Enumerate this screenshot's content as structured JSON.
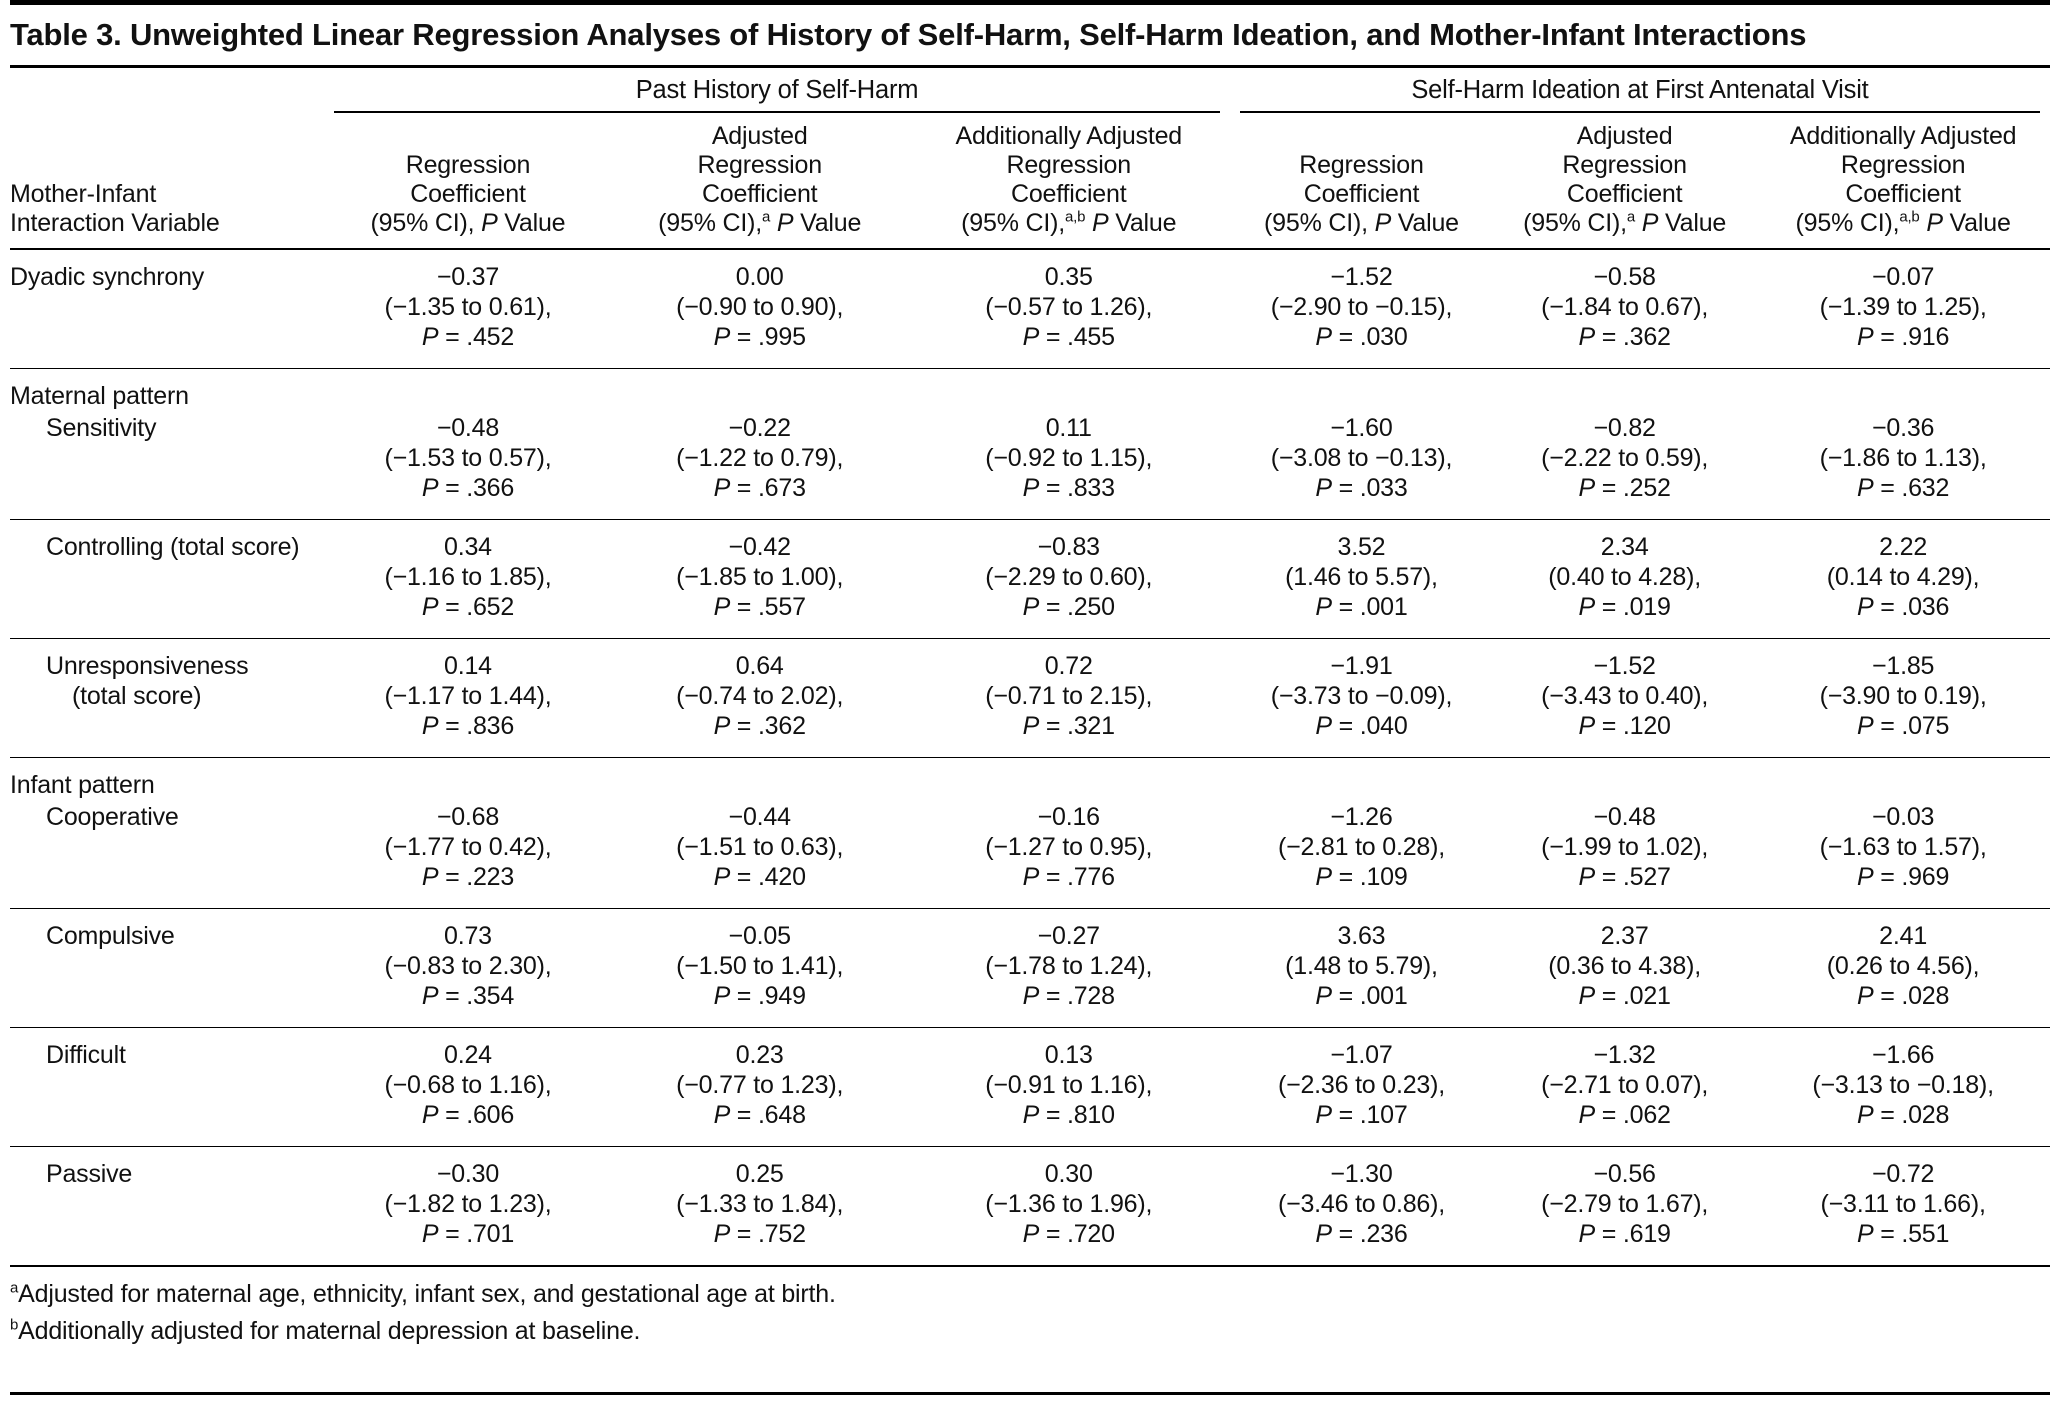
{
  "page": {
    "title": "Table 3. Unweighted Linear Regression Analyses of History of Self-Harm, Self-Harm Ideation, and Mother-Infant Interactions"
  },
  "table": {
    "stub_header_lines": [
      "Mother-Infant",
      "Interaction Variable"
    ],
    "col_groups": [
      {
        "label": "Past History of Self-Harm"
      },
      {
        "label": "Self-Harm Ideation at First Antenatal Visit"
      }
    ],
    "p_word": "P",
    "value_word": "Value",
    "p_eq": " = ",
    "col_headers": [
      {
        "lines": [
          "Regression",
          "Coefficient"
        ],
        "ci": "(95% CI),",
        "sup": ""
      },
      {
        "lines": [
          "Adjusted",
          "Regression",
          "Coefficient"
        ],
        "ci": "(95% CI),",
        "sup": "a"
      },
      {
        "lines": [
          "Additionally Adjusted",
          "Regression",
          "Coefficient"
        ],
        "ci": "(95% CI),",
        "sup": "a,b"
      },
      {
        "lines": [
          "Regression",
          "Coefficient"
        ],
        "ci": "(95% CI),",
        "sup": ""
      },
      {
        "lines": [
          "Adjusted",
          "Regression",
          "Coefficient"
        ],
        "ci": "(95% CI),",
        "sup": "a"
      },
      {
        "lines": [
          "Additionally Adjusted",
          "Regression",
          "Coefficient"
        ],
        "ci": "(95% CI),",
        "sup": "a,b"
      }
    ],
    "blocks": [
      {
        "section": null,
        "rows": [
          {
            "label_lines": [
              "Dyadic synchrony"
            ],
            "indent": 0,
            "cells": [
              {
                "coef": "−0.37",
                "ci": "(−1.35 to 0.61),",
                "p": ".452"
              },
              {
                "coef": "0.00",
                "ci": "(−0.90 to 0.90),",
                "p": ".995"
              },
              {
                "coef": "0.35",
                "ci": "(−0.57 to 1.26),",
                "p": ".455"
              },
              {
                "coef": "−1.52",
                "ci": "(−2.90 to −0.15),",
                "p": ".030"
              },
              {
                "coef": "−0.58",
                "ci": "(−1.84 to 0.67),",
                "p": ".362"
              },
              {
                "coef": "−0.07",
                "ci": "(−1.39 to 1.25),",
                "p": ".916"
              }
            ]
          }
        ]
      },
      {
        "section": "Maternal pattern",
        "rows": [
          {
            "label_lines": [
              "Sensitivity"
            ],
            "indent": 1,
            "cells": [
              {
                "coef": "−0.48",
                "ci": "(−1.53 to 0.57),",
                "p": ".366"
              },
              {
                "coef": "−0.22",
                "ci": "(−1.22 to 0.79),",
                "p": ".673"
              },
              {
                "coef": "0.11",
                "ci": "(−0.92 to 1.15),",
                "p": ".833"
              },
              {
                "coef": "−1.60",
                "ci": "(−3.08 to −0.13),",
                "p": ".033"
              },
              {
                "coef": "−0.82",
                "ci": "(−2.22 to 0.59),",
                "p": ".252"
              },
              {
                "coef": "−0.36",
                "ci": "(−1.86 to 1.13),",
                "p": ".632"
              }
            ]
          }
        ]
      },
      {
        "section": null,
        "rows": [
          {
            "label_lines": [
              "Controlling (total score)"
            ],
            "indent": 1,
            "cells": [
              {
                "coef": "0.34",
                "ci": "(−1.16 to 1.85),",
                "p": ".652"
              },
              {
                "coef": "−0.42",
                "ci": "(−1.85 to 1.00),",
                "p": ".557"
              },
              {
                "coef": "−0.83",
                "ci": "(−2.29 to 0.60),",
                "p": ".250"
              },
              {
                "coef": "3.52",
                "ci": "(1.46 to 5.57),",
                "p": ".001"
              },
              {
                "coef": "2.34",
                "ci": "(0.40 to 4.28),",
                "p": ".019"
              },
              {
                "coef": "2.22",
                "ci": "(0.14 to 4.29),",
                "p": ".036"
              }
            ]
          }
        ]
      },
      {
        "section": null,
        "rows": [
          {
            "label_lines": [
              "Unresponsiveness",
              "(total score)"
            ],
            "indent": 1,
            "cells": [
              {
                "coef": "0.14",
                "ci": "(−1.17 to 1.44),",
                "p": ".836"
              },
              {
                "coef": "0.64",
                "ci": "(−0.74 to 2.02),",
                "p": ".362"
              },
              {
                "coef": "0.72",
                "ci": "(−0.71 to 2.15),",
                "p": ".321"
              },
              {
                "coef": "−1.91",
                "ci": "(−3.73 to −0.09),",
                "p": ".040"
              },
              {
                "coef": "−1.52",
                "ci": "(−3.43 to 0.40),",
                "p": ".120"
              },
              {
                "coef": "−1.85",
                "ci": "(−3.90 to 0.19),",
                "p": ".075"
              }
            ]
          }
        ]
      },
      {
        "section": "Infant pattern",
        "rows": [
          {
            "label_lines": [
              "Cooperative"
            ],
            "indent": 1,
            "cells": [
              {
                "coef": "−0.68",
                "ci": "(−1.77 to 0.42),",
                "p": ".223"
              },
              {
                "coef": "−0.44",
                "ci": "(−1.51 to 0.63),",
                "p": ".420"
              },
              {
                "coef": "−0.16",
                "ci": "(−1.27 to 0.95),",
                "p": ".776"
              },
              {
                "coef": "−1.26",
                "ci": "(−2.81 to 0.28),",
                "p": ".109"
              },
              {
                "coef": "−0.48",
                "ci": "(−1.99 to 1.02),",
                "p": ".527"
              },
              {
                "coef": "−0.03",
                "ci": "(−1.63 to 1.57),",
                "p": ".969"
              }
            ]
          }
        ]
      },
      {
        "section": null,
        "rows": [
          {
            "label_lines": [
              "Compulsive"
            ],
            "indent": 1,
            "cells": [
              {
                "coef": "0.73",
                "ci": "(−0.83 to 2.30),",
                "p": ".354"
              },
              {
                "coef": "−0.05",
                "ci": "(−1.50 to 1.41),",
                "p": ".949"
              },
              {
                "coef": "−0.27",
                "ci": "(−1.78 to 1.24),",
                "p": ".728"
              },
              {
                "coef": "3.63",
                "ci": "(1.48 to 5.79),",
                "p": ".001"
              },
              {
                "coef": "2.37",
                "ci": "(0.36 to 4.38),",
                "p": ".021"
              },
              {
                "coef": "2.41",
                "ci": "(0.26 to 4.56),",
                "p": ".028"
              }
            ]
          }
        ]
      },
      {
        "section": null,
        "rows": [
          {
            "label_lines": [
              "Difficult"
            ],
            "indent": 1,
            "cells": [
              {
                "coef": "0.24",
                "ci": "(−0.68 to 1.16),",
                "p": ".606"
              },
              {
                "coef": "0.23",
                "ci": "(−0.77 to 1.23),",
                "p": ".648"
              },
              {
                "coef": "0.13",
                "ci": "(−0.91 to 1.16),",
                "p": ".810"
              },
              {
                "coef": "−1.07",
                "ci": "(−2.36 to 0.23),",
                "p": ".107"
              },
              {
                "coef": "−1.32",
                "ci": "(−2.71 to 0.07),",
                "p": ".062"
              },
              {
                "coef": "−1.66",
                "ci": "(−3.13 to −0.18),",
                "p": ".028"
              }
            ]
          }
        ]
      },
      {
        "section": null,
        "rows": [
          {
            "label_lines": [
              "Passive"
            ],
            "indent": 1,
            "cells": [
              {
                "coef": "−0.30",
                "ci": "(−1.82 to 1.23),",
                "p": ".701"
              },
              {
                "coef": "0.25",
                "ci": "(−1.33 to 1.84),",
                "p": ".752"
              },
              {
                "coef": "0.30",
                "ci": "(−1.36 to 1.96),",
                "p": ".720"
              },
              {
                "coef": "−1.30",
                "ci": "(−3.46 to 0.86),",
                "p": ".236"
              },
              {
                "coef": "−0.56",
                "ci": "(−2.79 to 1.67),",
                "p": ".619"
              },
              {
                "coef": "−0.72",
                "ci": "(−3.11 to 1.66),",
                "p": ".551"
              }
            ]
          }
        ]
      }
    ]
  },
  "footnotes": [
    {
      "sup": "a",
      "text": "Adjusted for maternal age, ethnicity, infant sex, and gestational age at birth."
    },
    {
      "sup": "b",
      "text": "Additionally adjusted for maternal depression at baseline."
    }
  ]
}
